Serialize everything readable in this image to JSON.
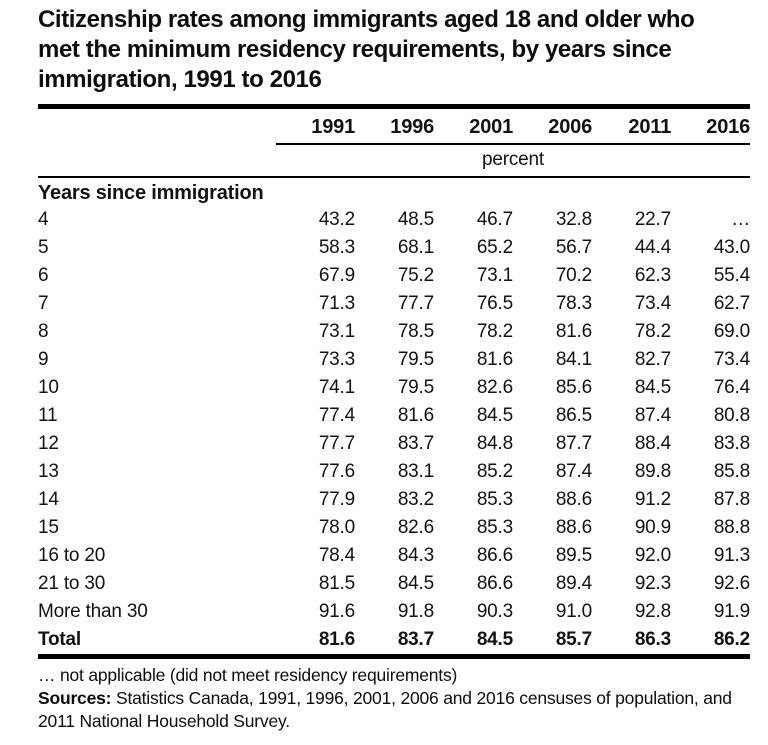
{
  "header": {
    "title_lines": [
      "Citizenship rates among immigrants aged 18 and older who",
      "met the minimum residency requirements, by years since",
      "immigration, 1991 to 2016"
    ]
  },
  "chart_data": {
    "type": "table",
    "title": "Citizenship rates among immigrants aged 18 and older who met the minimum residency requirements, by years since immigration, 1991 to 2016",
    "unit": "percent",
    "columns": [
      "1991",
      "1996",
      "2001",
      "2006",
      "2011",
      "2016"
    ],
    "stub_header": "Years since immigration",
    "rows": [
      {
        "label": "4",
        "values": [
          "43.2",
          "48.5",
          "46.7",
          "32.8",
          "22.7",
          "…"
        ]
      },
      {
        "label": "5",
        "values": [
          "58.3",
          "68.1",
          "65.2",
          "56.7",
          "44.4",
          "43.0"
        ]
      },
      {
        "label": "6",
        "values": [
          "67.9",
          "75.2",
          "73.1",
          "70.2",
          "62.3",
          "55.4"
        ]
      },
      {
        "label": "7",
        "values": [
          "71.3",
          "77.7",
          "76.5",
          "78.3",
          "73.4",
          "62.7"
        ]
      },
      {
        "label": "8",
        "values": [
          "73.1",
          "78.5",
          "78.2",
          "81.6",
          "78.2",
          "69.0"
        ]
      },
      {
        "label": "9",
        "values": [
          "73.3",
          "79.5",
          "81.6",
          "84.1",
          "82.7",
          "73.4"
        ]
      },
      {
        "label": "10",
        "values": [
          "74.1",
          "79.5",
          "82.6",
          "85.6",
          "84.5",
          "76.4"
        ]
      },
      {
        "label": "11",
        "values": [
          "77.4",
          "81.6",
          "84.5",
          "86.5",
          "87.4",
          "80.8"
        ]
      },
      {
        "label": "12",
        "values": [
          "77.7",
          "83.7",
          "84.8",
          "87.7",
          "88.4",
          "83.8"
        ]
      },
      {
        "label": "13",
        "values": [
          "77.6",
          "83.1",
          "85.2",
          "87.4",
          "89.8",
          "85.8"
        ]
      },
      {
        "label": "14",
        "values": [
          "77.9",
          "83.2",
          "85.3",
          "88.6",
          "91.2",
          "87.8"
        ]
      },
      {
        "label": "15",
        "values": [
          "78.0",
          "82.6",
          "85.3",
          "88.6",
          "90.9",
          "88.8"
        ]
      },
      {
        "label": "16 to 20",
        "values": [
          "78.4",
          "84.3",
          "86.6",
          "89.5",
          "92.0",
          "91.3"
        ]
      },
      {
        "label": "21 to 30",
        "values": [
          "81.5",
          "84.5",
          "86.6",
          "89.4",
          "92.3",
          "92.6"
        ]
      },
      {
        "label": "More than 30",
        "values": [
          "91.6",
          "91.8",
          "90.3",
          "91.0",
          "92.8",
          "91.9"
        ]
      },
      {
        "label": "Total",
        "values": [
          "81.6",
          "83.7",
          "84.5",
          "85.7",
          "86.3",
          "86.2"
        ],
        "bold": true
      }
    ]
  },
  "footnotes": {
    "not_applicable": "… not applicable (did not meet residency requirements)",
    "sources_label": "Sources:",
    "sources_text": "Statistics Canada, 1991, 1996, 2001, 2006 and 2016 censuses of population, and 2011 National Household Survey."
  },
  "colors": {
    "text": "#121212",
    "rule": "#000000",
    "background": "#ffffff"
  }
}
